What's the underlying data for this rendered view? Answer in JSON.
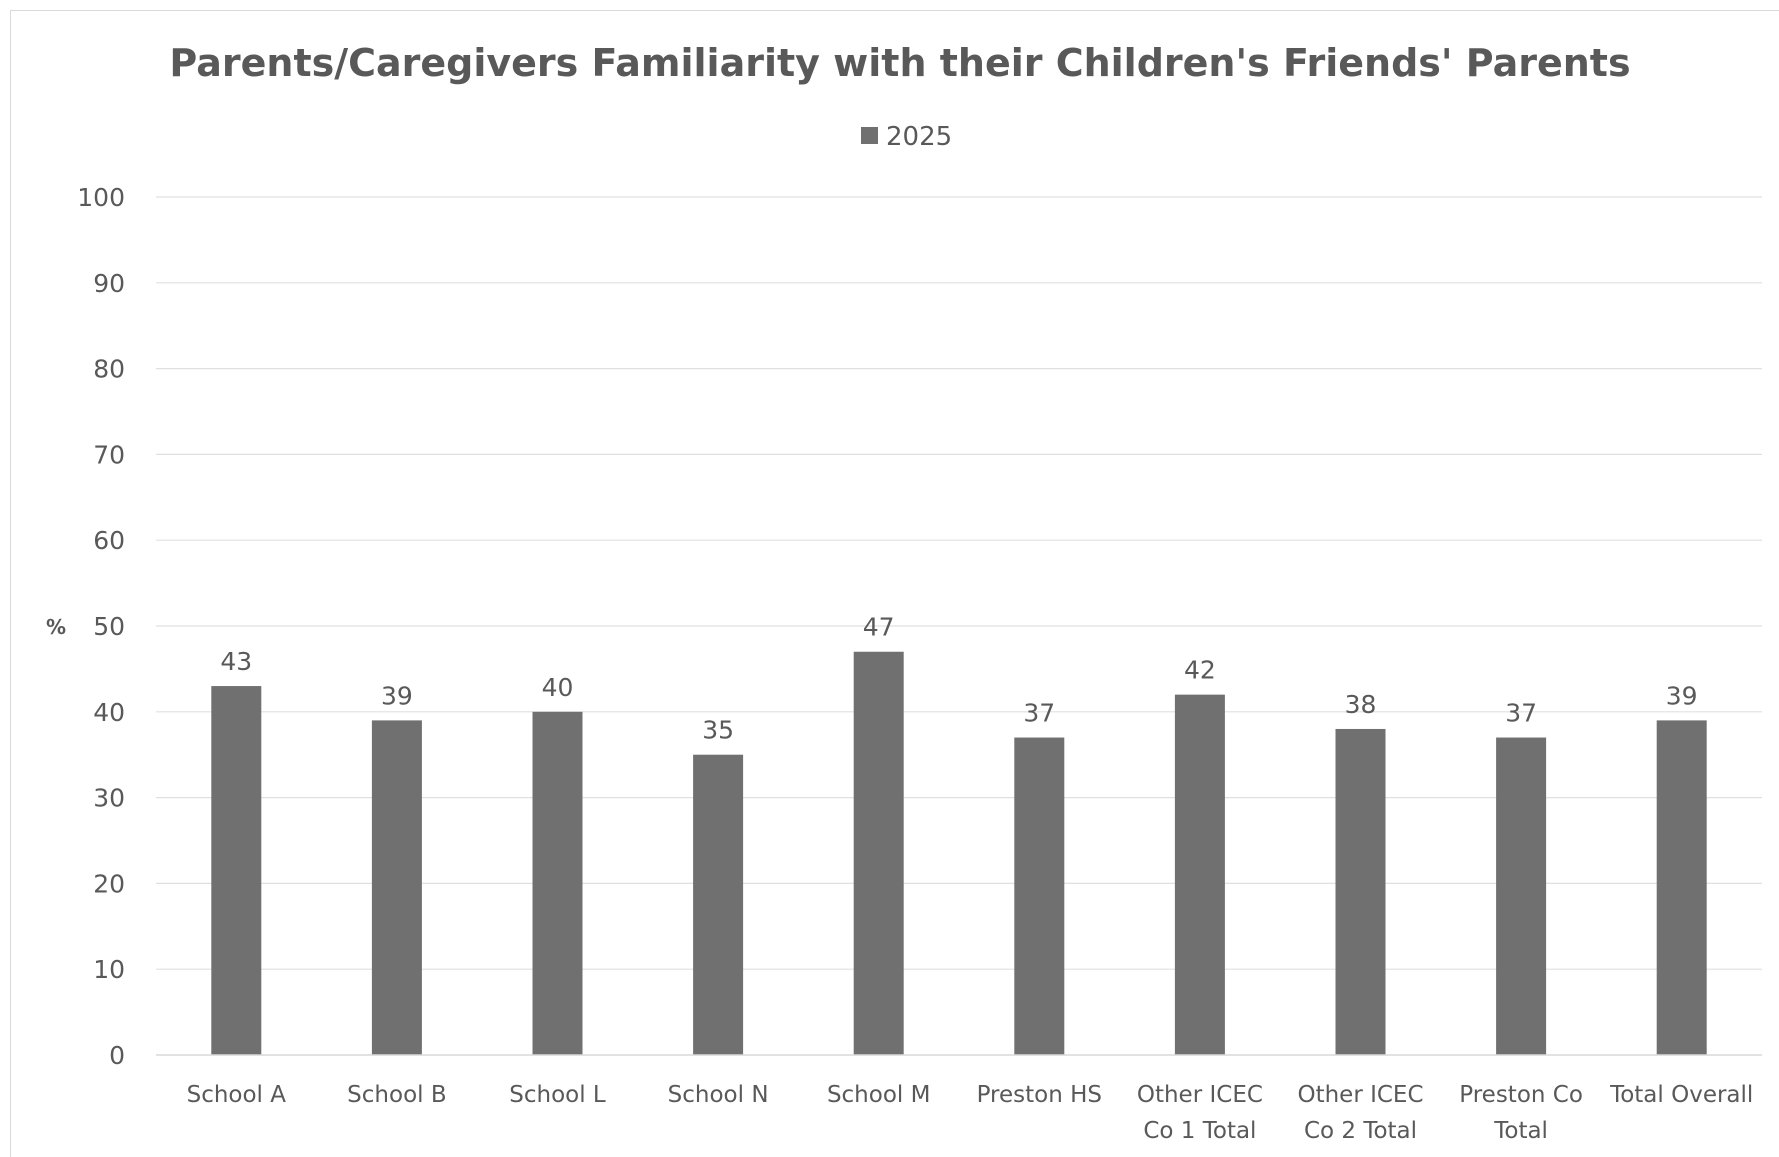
{
  "chart_data": {
    "type": "bar",
    "title": "Parents/Caregivers Familiarity with their Children's  Friends' Parents",
    "ylabel": "%",
    "xlabel": "",
    "ylim": [
      0,
      100
    ],
    "yticks": [
      0,
      10,
      20,
      30,
      40,
      50,
      60,
      70,
      80,
      90,
      100
    ],
    "grid": true,
    "legend_position": "top-center",
    "categories": [
      [
        "School A"
      ],
      [
        "School B"
      ],
      [
        "School L"
      ],
      [
        "School N"
      ],
      [
        "School M"
      ],
      [
        "Preston HS"
      ],
      [
        "Other ICEC",
        "Co 1 Total"
      ],
      [
        "Other ICEC",
        "Co 2 Total"
      ],
      [
        "Preston Co",
        "Total"
      ],
      [
        "Total Overall"
      ]
    ],
    "series": [
      {
        "name": "2025",
        "color": "#707070",
        "values": [
          43,
          39,
          40,
          35,
          47,
          37,
          42,
          38,
          37,
          39
        ]
      }
    ]
  }
}
